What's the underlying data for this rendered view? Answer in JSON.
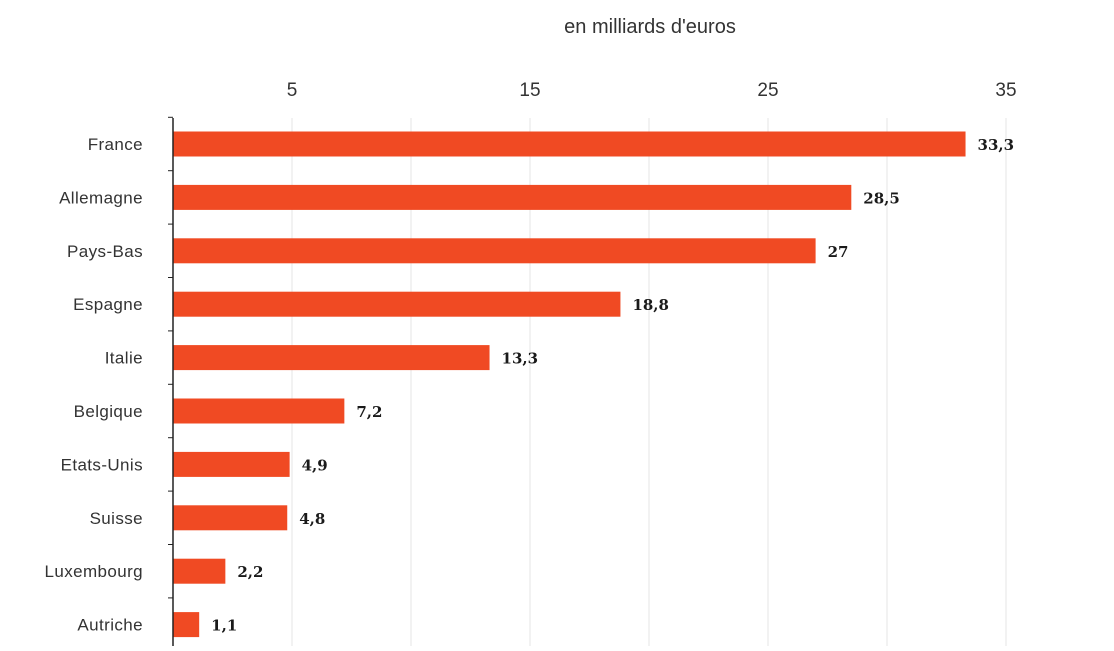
{
  "chart_data": {
    "type": "bar",
    "orientation": "horizontal",
    "unit_label": "en milliards d'euros",
    "categories": [
      "France",
      "Allemagne",
      "Pays-Bas",
      "Espagne",
      "Italie",
      "Belgique",
      "Etats-Unis",
      "Suisse",
      "Luxembourg",
      "Autriche"
    ],
    "values": [
      33.3,
      28.5,
      27,
      18.8,
      13.3,
      7.2,
      4.9,
      4.8,
      2.2,
      1.1
    ],
    "value_labels": [
      "33,3",
      "28,5",
      "27",
      "18,8",
      "13,3",
      "7,2",
      "4,9",
      "4,8",
      "2,2",
      "1,1"
    ],
    "x_ticks": [
      5,
      15,
      25,
      35
    ],
    "x_tick_labels": [
      "5",
      "15",
      "25",
      "35"
    ],
    "xlim": [
      0,
      40
    ],
    "grid": true,
    "axis_position": "top",
    "colors": {
      "bar": "#f04a23"
    }
  }
}
